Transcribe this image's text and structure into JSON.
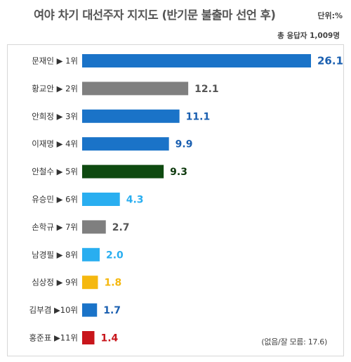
{
  "title": "여야 차기 대선주자 지지도 (반기문 불출마 선언 후)",
  "unit": "단위:%",
  "respondents": "총 응답자 1,009명",
  "footnote": "(없음/잘 모름: 17.6)",
  "chart_data": {
    "type": "bar",
    "orientation": "horizontal",
    "title": "여야 차기 대선주자 지지도 (반기문 불출마 선언 후)",
    "categories": [
      "문재인 ▶ 1위",
      "황교안 ▶ 2위",
      "안희정 ▶ 3위",
      "이재명 ▶ 4위",
      "안철수 ▶ 5위",
      "유승민 ▶ 6위",
      "손학규 ▶ 7위",
      "남경필 ▶ 8위",
      "심상정 ▶ 9위",
      "김부겸 ▶10위",
      "홍준표 ▶11위"
    ],
    "values": [
      26.1,
      12.1,
      11.1,
      9.9,
      9.3,
      4.3,
      2.7,
      2.0,
      1.8,
      1.7,
      1.4
    ],
    "value_labels": [
      "26.1",
      "12.1",
      "11.1",
      "9.9",
      "9.3",
      "4.3",
      "2.7",
      "2.0",
      "1.8",
      "1.7",
      "1.4"
    ],
    "colors": [
      "#1a73c8",
      "#7f7f7f",
      "#1a73c8",
      "#1a73c8",
      "#0e4a10",
      "#29aef0",
      "#7f7f7f",
      "#29aef0",
      "#f5b80f",
      "#1a73c8",
      "#c8151b"
    ],
    "label_colors": [
      "#1a5fb0",
      "#555555",
      "#1a5fb0",
      "#1a5fb0",
      "#0e3a0e",
      "#29aef0",
      "#555555",
      "#29aef0",
      "#f5b80f",
      "#1a5fb0",
      "#c8151b"
    ],
    "xlim": [
      0,
      26.1
    ],
    "grid": false,
    "legend": "none"
  }
}
